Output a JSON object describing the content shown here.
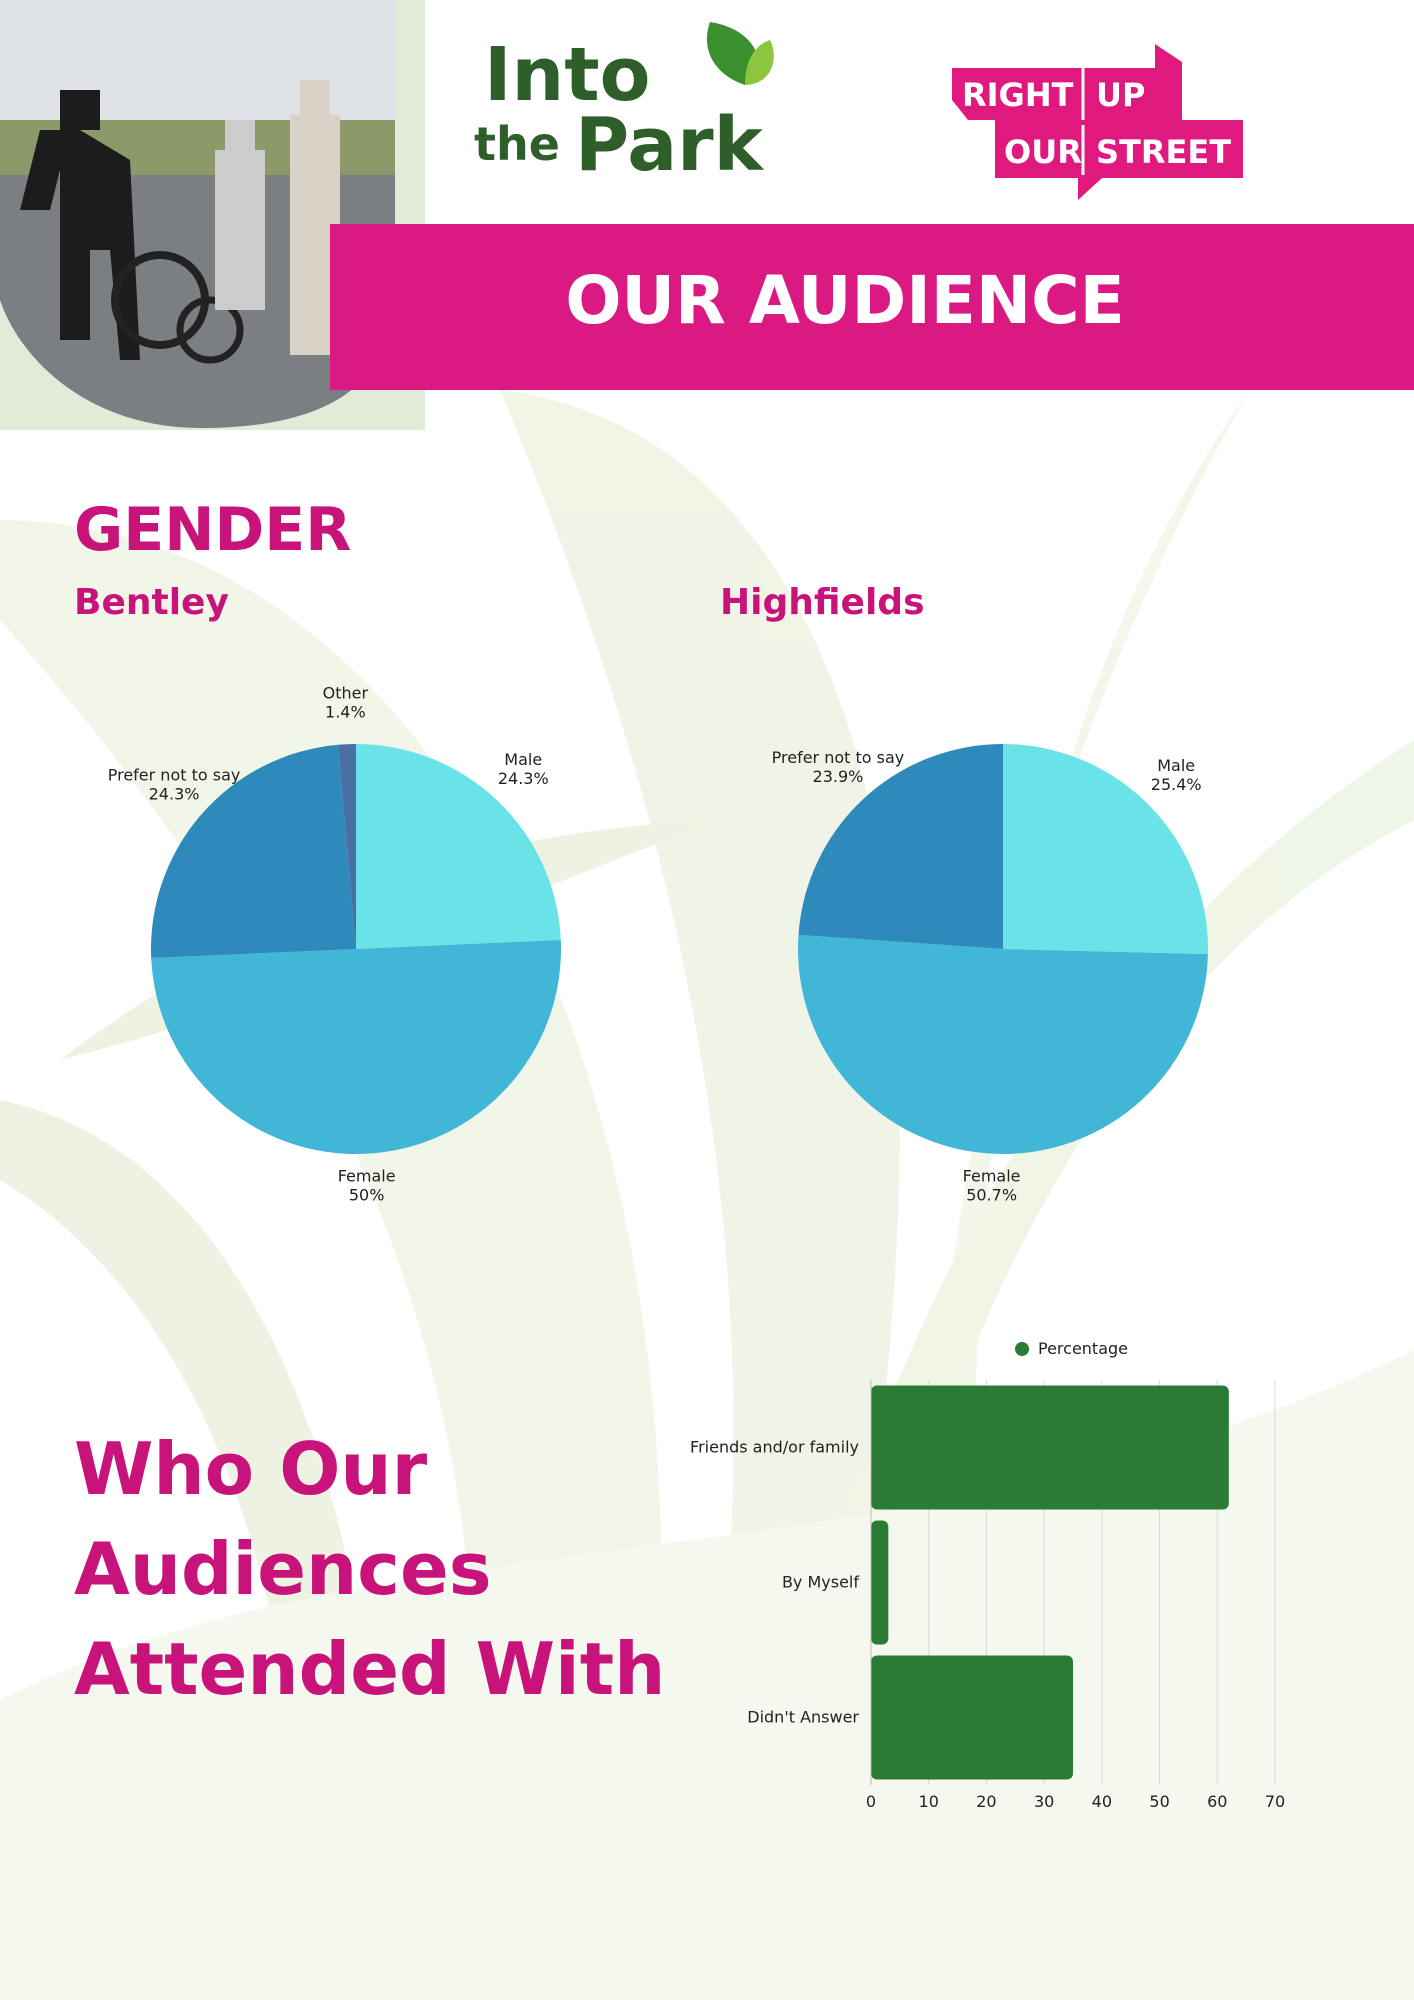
{
  "header": {
    "logo_left": [
      "Into",
      "the",
      "Park"
    ],
    "logo_right": [
      "RIGHT",
      "UP",
      "OUR",
      "STREET"
    ],
    "banner": "OUR AUDIENCE"
  },
  "gender": {
    "title": "GENDER"
  },
  "attended": {
    "title_lines": [
      "Who Our",
      "Audiences",
      "Attended With"
    ]
  },
  "chart_data": [
    {
      "type": "pie",
      "title": "Bentley",
      "categories": [
        "Male",
        "Female",
        "Prefer not to say",
        "Other"
      ],
      "values": [
        24.3,
        50,
        24.3,
        1.4
      ],
      "value_labels": [
        "24.3%",
        "50%",
        "24.3%",
        "1.4%"
      ],
      "colors": [
        "#6ae3e8",
        "#41b6d6",
        "#2e8aba",
        "#4a6fa5"
      ]
    },
    {
      "type": "pie",
      "title": "Highfields",
      "categories": [
        "Male",
        "Female",
        "Prefer not to say"
      ],
      "values": [
        25.4,
        50.7,
        23.9
      ],
      "value_labels": [
        "25.4%",
        "50.7%",
        "23.9%"
      ],
      "colors": [
        "#6ae3e8",
        "#41b6d6",
        "#2e8aba"
      ]
    },
    {
      "type": "hbar",
      "categories": [
        "Friends and/or family",
        "By Myself",
        "Didn't Answer"
      ],
      "series": [
        {
          "name": "Percentage",
          "color": "#2b7a35",
          "values": [
            62,
            3,
            35
          ]
        }
      ],
      "xlim": [
        0,
        70
      ],
      "xticks": [
        0,
        10,
        20,
        30,
        40,
        50,
        60,
        70
      ],
      "grid": true,
      "legend": "top"
    }
  ]
}
